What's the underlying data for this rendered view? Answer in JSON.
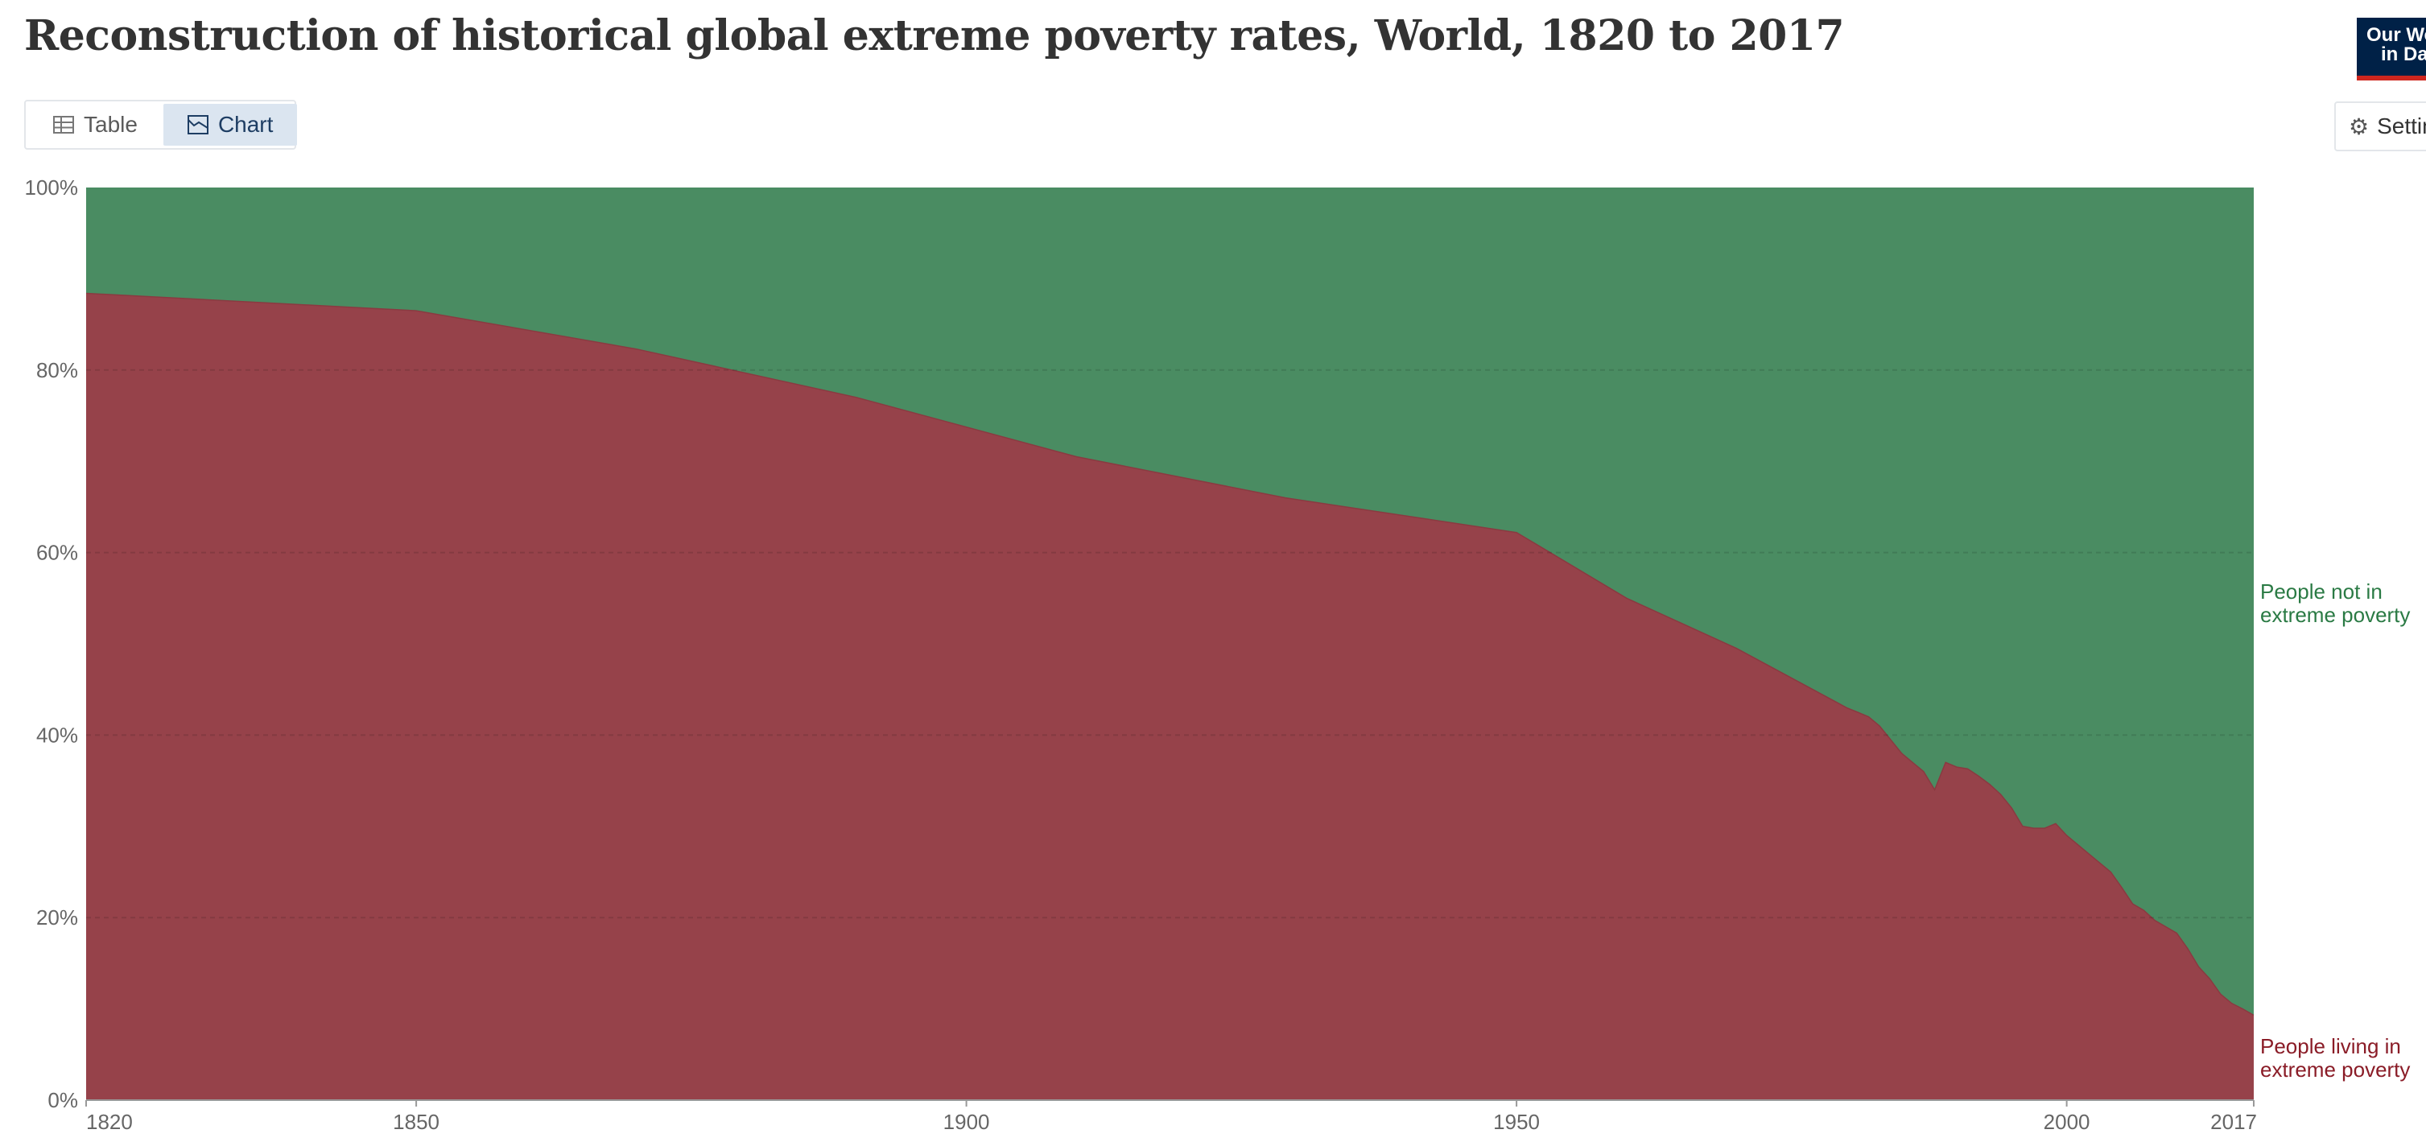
{
  "header": {
    "title": "Reconstruction of historical global extreme poverty rates, World, 1820 to 2017",
    "logo_line1": "Our World",
    "logo_line2": "in Data"
  },
  "tabs": [
    {
      "label": "Table",
      "icon": "table-icon",
      "active": false
    },
    {
      "label": "Chart",
      "icon": "chart-icon",
      "active": true
    }
  ],
  "settings": {
    "label": "Settings",
    "icon": "gear-icon"
  },
  "chart_data": {
    "type": "area",
    "stacked": true,
    "title": "Reconstruction of historical global extreme poverty rates, World, 1820 to 2017",
    "xlabel": "",
    "ylabel": "",
    "xlim": [
      1820,
      2017
    ],
    "ylim": [
      0,
      100
    ],
    "x_ticks": [
      "1820",
      "1850",
      "1900",
      "1950",
      "2000",
      "2017"
    ],
    "y_ticks": [
      "0%",
      "20%",
      "40%",
      "60%",
      "80%",
      "100%"
    ],
    "grid": "horizontal dashed",
    "series": [
      {
        "name": "People living in extreme poverty",
        "label_lines": [
          "People living in",
          "extreme poverty"
        ],
        "color": "#96424a",
        "label_color": "#8a1c27",
        "points": [
          [
            1820,
            88.4
          ],
          [
            1850,
            86.5
          ],
          [
            1870,
            82.3
          ],
          [
            1890,
            77.0
          ],
          [
            1910,
            70.5
          ],
          [
            1929,
            66.0
          ],
          [
            1950,
            62.2
          ],
          [
            1960,
            55.0
          ],
          [
            1970,
            49.5
          ],
          [
            1980,
            43.0
          ],
          [
            1981,
            42.5
          ],
          [
            1982,
            42.0
          ],
          [
            1983,
            41.0
          ],
          [
            1984,
            39.5
          ],
          [
            1985,
            38.0
          ],
          [
            1986,
            37.0
          ],
          [
            1987,
            36.0
          ],
          [
            1988,
            34.0
          ],
          [
            1989,
            37.0
          ],
          [
            1990,
            36.5
          ],
          [
            1991,
            36.3
          ],
          [
            1992,
            35.5
          ],
          [
            1993,
            34.6
          ],
          [
            1994,
            33.5
          ],
          [
            1995,
            32.0
          ],
          [
            1996,
            30.0
          ],
          [
            1997,
            29.8
          ],
          [
            1998,
            29.8
          ],
          [
            1999,
            30.3
          ],
          [
            2000,
            29.0
          ],
          [
            2001,
            28.0
          ],
          [
            2002,
            27.0
          ],
          [
            2003,
            26.0
          ],
          [
            2004,
            25.0
          ],
          [
            2005,
            23.3
          ],
          [
            2006,
            21.5
          ],
          [
            2007,
            20.8
          ],
          [
            2008,
            19.7
          ],
          [
            2009,
            19.0
          ],
          [
            2010,
            18.3
          ],
          [
            2011,
            16.6
          ],
          [
            2012,
            14.6
          ],
          [
            2013,
            13.3
          ],
          [
            2014,
            11.6
          ],
          [
            2015,
            10.6
          ],
          [
            2016,
            10.0
          ],
          [
            2017,
            9.3
          ]
        ]
      },
      {
        "name": "People not in extreme poverty",
        "label_lines": [
          "People not in",
          "extreme poverty"
        ],
        "color": "#4a8c62",
        "label_color": "#2a7a44",
        "points": "remainder to 100%"
      }
    ]
  }
}
